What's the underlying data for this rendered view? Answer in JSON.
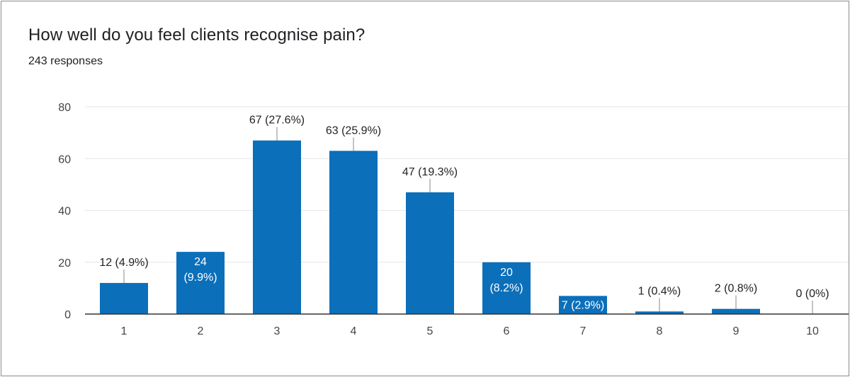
{
  "header": {
    "title": "How well do you feel clients recognise pain?",
    "responses": "243 responses"
  },
  "colors": {
    "bar": "#0b6fba",
    "grid": "#e6e6e6",
    "axis": "#333333"
  },
  "chart_data": {
    "type": "bar",
    "title": "How well do you feel clients recognise pain?",
    "xlabel": "",
    "ylabel": "",
    "categories": [
      "1",
      "2",
      "3",
      "4",
      "5",
      "6",
      "7",
      "8",
      "9",
      "10"
    ],
    "values": [
      12,
      24,
      67,
      63,
      47,
      20,
      7,
      1,
      2,
      0
    ],
    "labels": [
      "12 (4.9%)",
      "24 (9.9%)",
      "67 (27.6%)",
      "63 (25.9%)",
      "47 (19.3%)",
      "20 (8.2%)",
      "7 (2.9%)",
      "1 (0.4%)",
      "2 (0.8%)",
      "0 (0%)"
    ],
    "label_inside": [
      false,
      true,
      false,
      false,
      false,
      true,
      true,
      false,
      false,
      false
    ],
    "ylim": [
      0,
      80
    ],
    "yticks": [
      0,
      20,
      40,
      60,
      80
    ],
    "grid": true,
    "legend": "none"
  }
}
